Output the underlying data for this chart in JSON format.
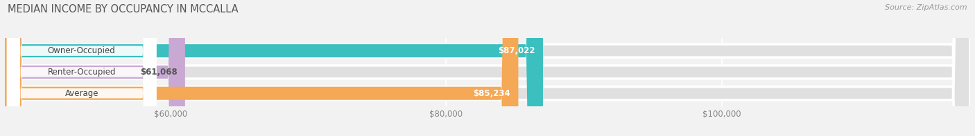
{
  "title": "MEDIAN INCOME BY OCCUPANCY IN MCCALLA",
  "source": "Source: ZipAtlas.com",
  "categories": [
    "Owner-Occupied",
    "Renter-Occupied",
    "Average"
  ],
  "values": [
    87022,
    61068,
    85234
  ],
  "colors": [
    "#3bbfbf",
    "#c9a8d4",
    "#f5a855"
  ],
  "bar_label_colors": [
    "white",
    "#555555",
    "white"
  ],
  "value_labels": [
    "$87,022",
    "$61,068",
    "$85,234"
  ],
  "xlim": [
    48000,
    118000
  ],
  "xticks": [
    60000,
    80000,
    100000
  ],
  "xtick_labels": [
    "$60,000",
    "$80,000",
    "$100,000"
  ],
  "bar_height": 0.62,
  "background_color": "#f2f2f2",
  "bar_bg_color": "#e0e0e0",
  "title_fontsize": 10.5,
  "label_fontsize": 8.5,
  "value_fontsize": 8.5,
  "source_fontsize": 8,
  "label_pill_color": "#ffffff"
}
